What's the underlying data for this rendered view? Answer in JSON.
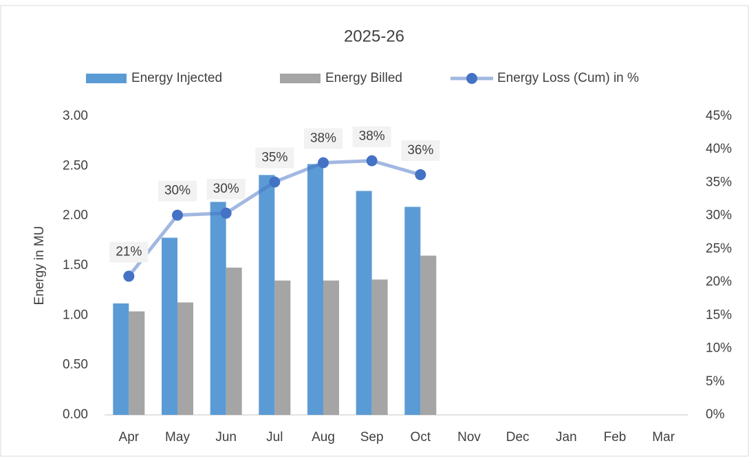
{
  "chart_data": {
    "type": "combo",
    "title": "2025-26",
    "y_label": "Energy in MU",
    "categories": [
      "Apr",
      "May",
      "Jun",
      "Jul",
      "Aug",
      "Sep",
      "Oct",
      "Nov",
      "Dec",
      "Jan",
      "Feb",
      "Mar"
    ],
    "series": [
      {
        "name": "Energy Injected",
        "type": "bar",
        "color": "#5b9bd5",
        "values": [
          1.12,
          1.78,
          2.14,
          2.41,
          2.52,
          2.25,
          2.09,
          null,
          null,
          null,
          null,
          null
        ]
      },
      {
        "name": "Energy Billed",
        "type": "bar",
        "color": "#a5a5a5",
        "values": [
          1.04,
          1.13,
          1.48,
          1.35,
          1.35,
          1.36,
          1.6,
          null,
          null,
          null,
          null,
          null
        ]
      },
      {
        "name": "Energy Loss (Cum) in %",
        "type": "line",
        "axis": "y2",
        "color": "#4472c4",
        "values": [
          20.9,
          30.1,
          30.4,
          35.1,
          38.0,
          38.3,
          36.2,
          null,
          null,
          null,
          null,
          null
        ],
        "value_labels": [
          "21%",
          "30%",
          "30%",
          "35%",
          "38%",
          "38%",
          "36%",
          null,
          null,
          null,
          null,
          null
        ]
      }
    ],
    "ylim": [
      0,
      3
    ],
    "yticks": [
      {
        "value": 0,
        "label": "0.00"
      },
      {
        "value": 0.5,
        "label": "0.50"
      },
      {
        "value": 1,
        "label": "1.00"
      },
      {
        "value": 1.5,
        "label": "1.50"
      },
      {
        "value": 2,
        "label": "2.00"
      },
      {
        "value": 2.5,
        "label": "2.50"
      },
      {
        "value": 3,
        "label": "3.00"
      }
    ],
    "y2lim": [
      0,
      45
    ],
    "y2ticks": [
      {
        "value": 0,
        "label": "0%"
      },
      {
        "value": 5,
        "label": "5%"
      },
      {
        "value": 10,
        "label": "10%"
      },
      {
        "value": 15,
        "label": "15%"
      },
      {
        "value": 20,
        "label": "20%"
      },
      {
        "value": 25,
        "label": "25%"
      },
      {
        "value": 30,
        "label": "30%"
      },
      {
        "value": 35,
        "label": "35%"
      },
      {
        "value": 40,
        "label": "40%"
      },
      {
        "value": 45,
        "label": "45%"
      }
    ],
    "legend": "top",
    "grid": false
  }
}
